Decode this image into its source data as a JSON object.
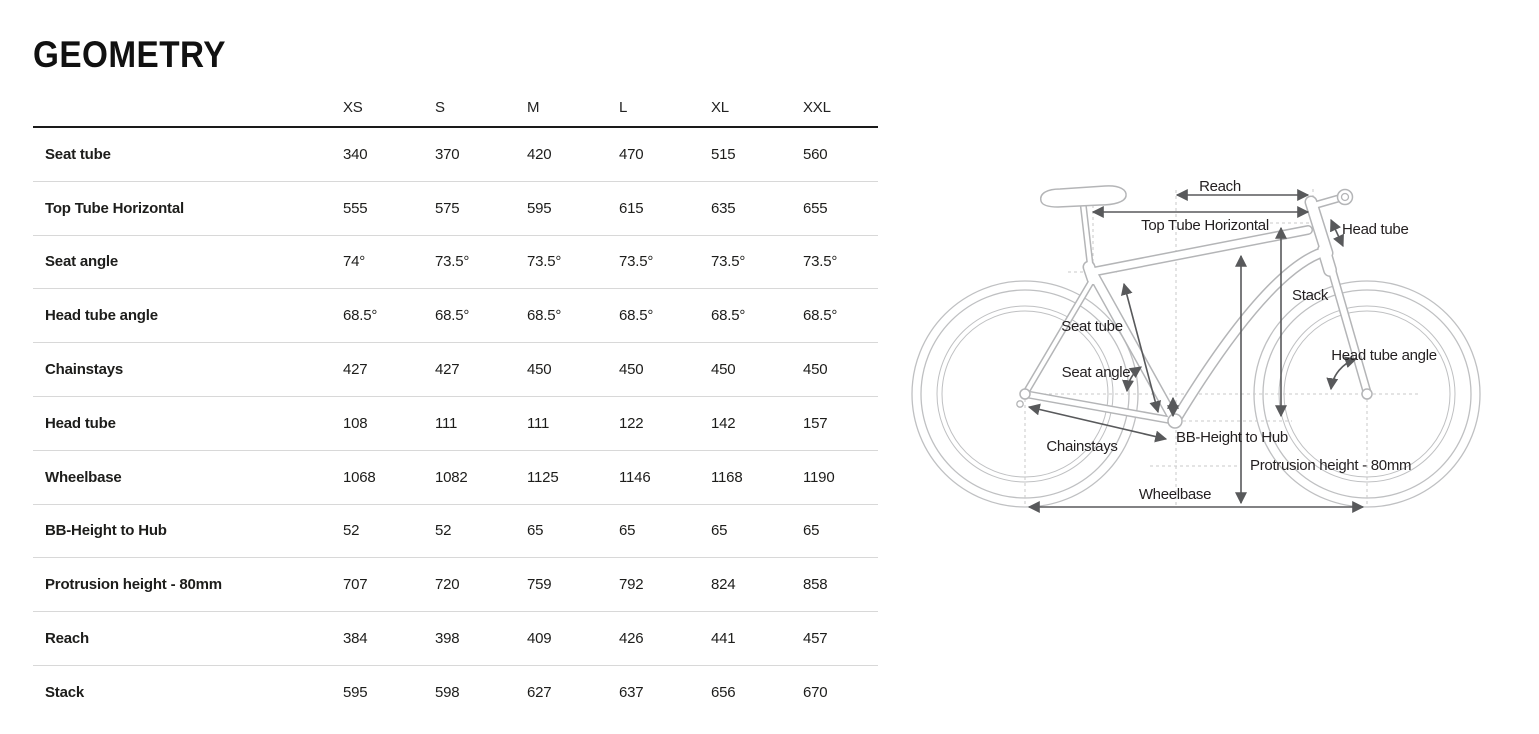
{
  "page": {
    "title": "GEOMETRY"
  },
  "table": {
    "size_headers": [
      "XS",
      "S",
      "M",
      "L",
      "XL",
      "XXL"
    ],
    "rows": [
      {
        "label": "Seat tube",
        "values": [
          "340",
          "370",
          "420",
          "470",
          "515",
          "560"
        ]
      },
      {
        "label": "Top Tube Horizontal",
        "values": [
          "555",
          "575",
          "595",
          "615",
          "635",
          "655"
        ]
      },
      {
        "label": "Seat angle",
        "values": [
          "74°",
          "73.5°",
          "73.5°",
          "73.5°",
          "73.5°",
          "73.5°"
        ]
      },
      {
        "label": "Head tube angle",
        "values": [
          "68.5°",
          "68.5°",
          "68.5°",
          "68.5°",
          "68.5°",
          "68.5°"
        ]
      },
      {
        "label": "Chainstays",
        "values": [
          "427",
          "427",
          "450",
          "450",
          "450",
          "450"
        ]
      },
      {
        "label": "Head tube",
        "values": [
          "108",
          "111",
          "111",
          "122",
          "142",
          "157"
        ]
      },
      {
        "label": "Wheelbase",
        "values": [
          "1068",
          "1082",
          "1125",
          "1146",
          "1168",
          "1190"
        ]
      },
      {
        "label": "BB-Height to Hub",
        "values": [
          "52",
          "52",
          "65",
          "65",
          "65",
          "65"
        ]
      },
      {
        "label": "Protrusion height - 80mm",
        "values": [
          "707",
          "720",
          "759",
          "792",
          "824",
          "858"
        ]
      },
      {
        "label": "Reach",
        "values": [
          "384",
          "398",
          "409",
          "426",
          "441",
          "457"
        ]
      },
      {
        "label": "Stack",
        "values": [
          "595",
          "598",
          "627",
          "637",
          "656",
          "670"
        ]
      }
    ]
  },
  "diagram": {
    "labels": {
      "reach": "Reach",
      "top_tube_horizontal": "Top Tube Horizontal",
      "head_tube": "Head tube",
      "stack": "Stack",
      "seat_tube": "Seat tube",
      "seat_angle": "Seat angle",
      "head_tube_angle": "Head tube angle",
      "chainstays": "Chainstays",
      "bb_height_to_hub": "BB-Height to Hub",
      "protrusion_height": "Protrusion height - 80mm",
      "wheelbase": "Wheelbase"
    },
    "colors": {
      "bike_line": "#b4b5b7",
      "arrow": "#58595b",
      "helper_dotted": "#c9c9c9",
      "text": "#231f20"
    }
  },
  "chart_data": {
    "type": "table",
    "title": "GEOMETRY",
    "categories": [
      "XS",
      "S",
      "M",
      "L",
      "XL",
      "XXL"
    ],
    "series": [
      {
        "name": "Seat tube",
        "values": [
          340,
          370,
          420,
          470,
          515,
          560
        ]
      },
      {
        "name": "Top Tube Horizontal",
        "values": [
          555,
          575,
          595,
          615,
          635,
          655
        ]
      },
      {
        "name": "Seat angle",
        "values": [
          74,
          73.5,
          73.5,
          73.5,
          73.5,
          73.5
        ]
      },
      {
        "name": "Head tube angle",
        "values": [
          68.5,
          68.5,
          68.5,
          68.5,
          68.5,
          68.5
        ]
      },
      {
        "name": "Chainstays",
        "values": [
          427,
          427,
          450,
          450,
          450,
          450
        ]
      },
      {
        "name": "Head tube",
        "values": [
          108,
          111,
          111,
          122,
          142,
          157
        ]
      },
      {
        "name": "Wheelbase",
        "values": [
          1068,
          1082,
          1125,
          1146,
          1168,
          1190
        ]
      },
      {
        "name": "BB-Height to Hub",
        "values": [
          52,
          52,
          65,
          65,
          65,
          65
        ]
      },
      {
        "name": "Protrusion height - 80mm",
        "values": [
          707,
          720,
          759,
          792,
          824,
          858
        ]
      },
      {
        "name": "Reach",
        "values": [
          384,
          398,
          409,
          426,
          441,
          457
        ]
      },
      {
        "name": "Stack",
        "values": [
          595,
          598,
          627,
          637,
          656,
          670
        ]
      }
    ]
  }
}
